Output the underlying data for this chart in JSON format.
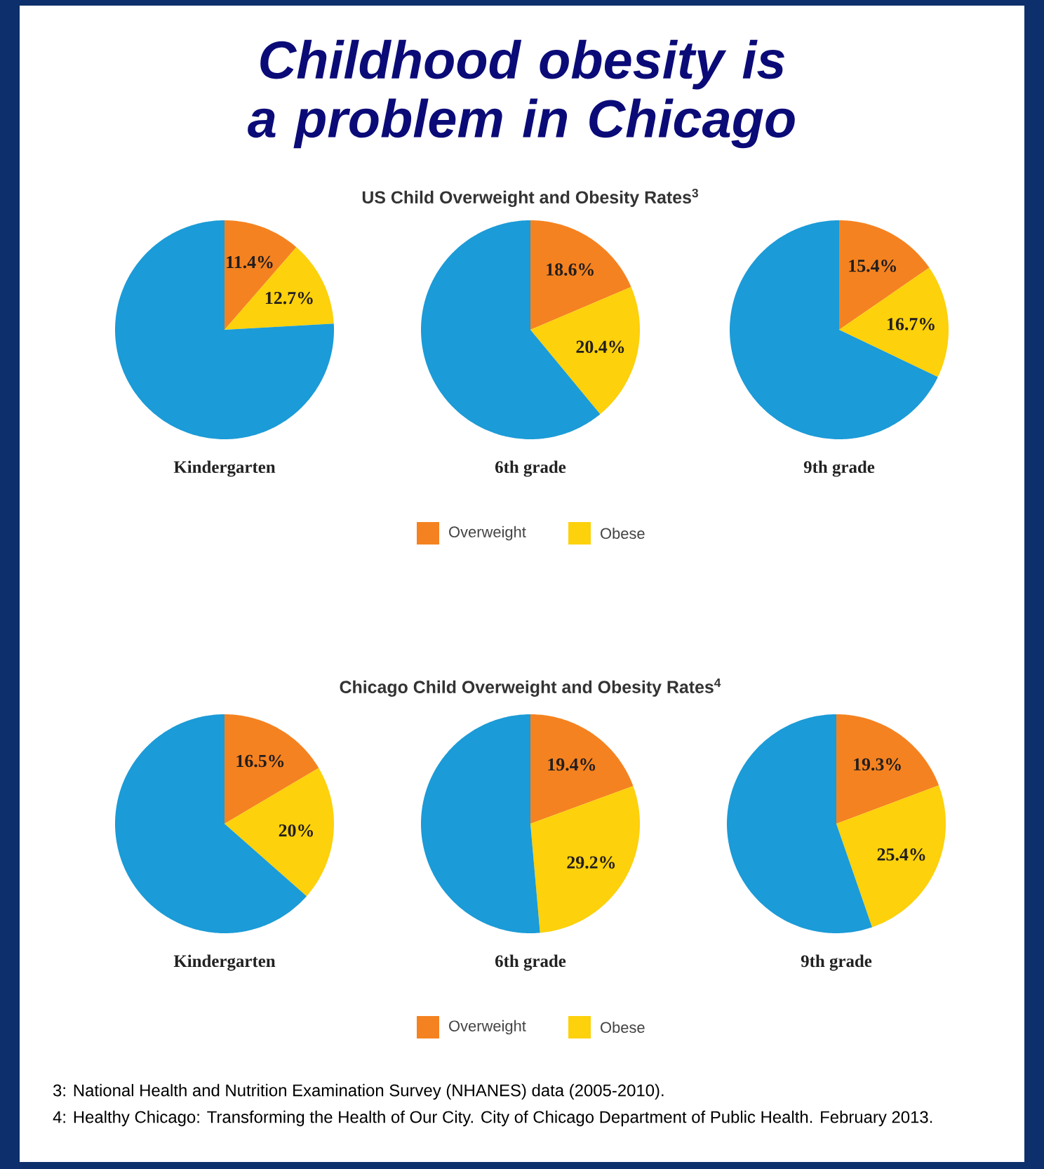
{
  "chart_data": [
    {
      "type": "pie",
      "xlabel": "Kindergarten",
      "categories": [
        null,
        null,
        null
      ],
      "values": [
        11.4,
        12.7,
        75.9
      ],
      "value_labels": [
        "11.4%",
        "12.7%",
        null
      ],
      "colors": [
        "#f58220",
        "#fdd10b",
        "#1b9bd7"
      ]
    },
    {
      "type": "pie",
      "title": "Childhood obesity is a problem in Chicago",
      "subtitle": "US Child Overweight and Obesity Rates$^{3}$",
      "xlabel": "6th grade",
      "categories": [
        "Overweight",
        "Obese",
        null
      ],
      "values": [
        18.6,
        20.4,
        61.0
      ],
      "value_labels": [
        "18.6%",
        "20.4%",
        null
      ],
      "colors": [
        "#f58220",
        "#fdd10b",
        "#1b9bd7"
      ],
      "legend": "bottom"
    },
    {
      "type": "pie",
      "xlabel": "9th grade",
      "categories": [
        null,
        null,
        null
      ],
      "values": [
        15.4,
        16.7,
        67.9
      ],
      "value_labels": [
        "15.4%",
        "16.7%",
        null
      ],
      "colors": [
        "#f58220",
        "#fdd10b",
        "#1b9bd7"
      ]
    },
    {
      "type": "pie",
      "xlabel": "Kindergarten",
      "categories": [
        null,
        null,
        null
      ],
      "values": [
        16.5,
        20,
        63.5
      ],
      "value_labels": [
        "16.5%",
        "20%",
        null
      ],
      "colors": [
        "#f58220",
        "#fdd10b",
        "#1b9bd7"
      ]
    },
    {
      "type": "pie",
      "subtitle": "Chicago Child Overweight and Obesity Rates$^{4}$",
      "xlabel": "6th grade",
      "categories": [
        "Overweight",
        "Obese",
        null
      ],
      "values": [
        19.4,
        29.2,
        51.4
      ],
      "value_labels": [
        "19.4%",
        "29.2%",
        null
      ],
      "colors": [
        "#f58220",
        "#fdd10b",
        "#1b9bd7"
      ],
      "legend": "bottom",
      "annotations": [
        "3: National Health and Nutrition Examination Survey (NHANES) data (2005-2010).",
        "4: Healthy Chicago: Transforming the Health of Our City. City of Chicago Department of Public Health. February 2013."
      ]
    },
    {
      "type": "pie",
      "xlabel": "9th grade",
      "categories": [
        null,
        null,
        null
      ],
      "values": [
        19.3,
        25.4,
        55.3
      ],
      "value_labels": [
        "19.3%",
        "25.4%",
        null
      ],
      "colors": [
        "#f58220",
        "#fdd10b",
        "#1b9bd7"
      ]
    }
  ]
}
